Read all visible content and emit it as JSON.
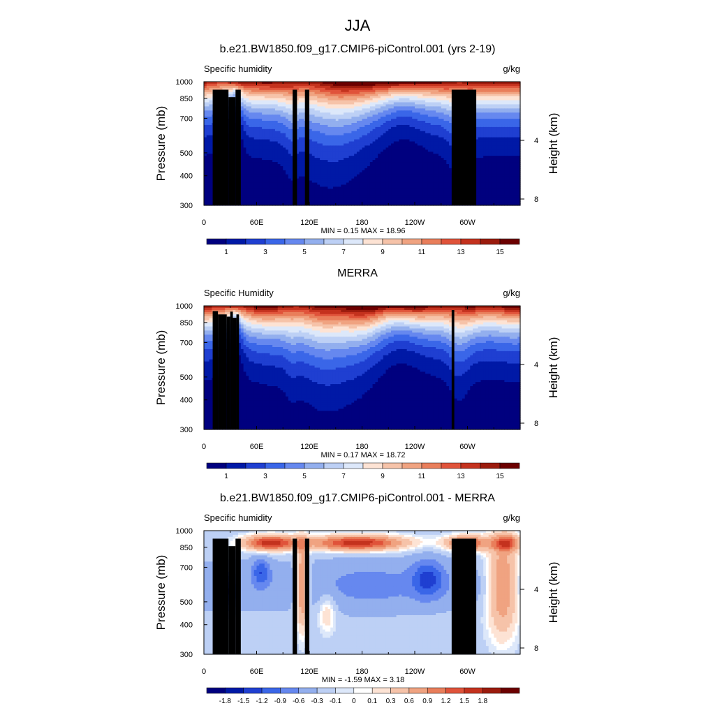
{
  "figure": {
    "title": "JJA"
  },
  "colors": {
    "abs_palette": [
      "#00007f",
      "#0019a6",
      "#1f3fd1",
      "#3a66e8",
      "#6688ef",
      "#93afee",
      "#bdd0f5",
      "#dde8fa",
      "#fde3d4",
      "#f6c3a9",
      "#f0a381",
      "#e97e5b",
      "#e0533a",
      "#c4321e",
      "#9b1b0d",
      "#6c0000"
    ],
    "diff_palette": [
      "#00007f",
      "#0019a6",
      "#1f3fd1",
      "#3a66e8",
      "#6688ef",
      "#93afee",
      "#bdd0f5",
      "#dde8fa",
      "#ffffff",
      "#fde3d4",
      "#f6c3a9",
      "#f0a381",
      "#e97e5b",
      "#e0533a",
      "#c4321e",
      "#9b1b0d",
      "#6c0000"
    ],
    "topography": "#000000"
  },
  "chart_data": [
    {
      "type": "heatmap",
      "title": "b.e21.BW1850.f09_g17.CMIP6-piControl.001 (yrs 2-19)",
      "left_label": "Specific humidity",
      "units": "g/kg",
      "ylabel": "Pressure (mb)",
      "ylabel_right": "Height (km)",
      "x_ticks": [
        "0",
        "60E",
        "120E",
        "180",
        "120W",
        "60W"
      ],
      "y_ticks": [
        "300",
        "400",
        "500",
        "700",
        "850",
        "1000"
      ],
      "y_ticks_right": [
        "8",
        "4"
      ],
      "min_max_text": "MIN =   0.15  MAX =  18.96",
      "colorbar_labels": [
        "1",
        "3",
        "5",
        "7",
        "9",
        "11",
        "13",
        "15"
      ],
      "min": 0.15,
      "max": 18.96,
      "xlim": [
        0,
        360
      ],
      "ylim": [
        1000,
        300
      ],
      "levels": [
        1,
        2,
        3,
        4,
        5,
        6,
        7,
        8,
        9,
        10,
        11,
        12,
        13,
        14,
        15
      ]
    },
    {
      "type": "heatmap",
      "title": "MERRA",
      "left_label": "Specific Humidity",
      "units": "g/kg",
      "ylabel": "Pressure (mb)",
      "ylabel_right": "Height (km)",
      "x_ticks": [
        "0",
        "60E",
        "120E",
        "180",
        "120W",
        "60W"
      ],
      "y_ticks": [
        "300",
        "400",
        "500",
        "700",
        "850",
        "1000"
      ],
      "y_ticks_right": [
        "8",
        "4"
      ],
      "min_max_text": "MIN =   0.17  MAX =  18.72",
      "colorbar_labels": [
        "1",
        "3",
        "5",
        "7",
        "9",
        "11",
        "13",
        "15"
      ],
      "min": 0.17,
      "max": 18.72,
      "xlim": [
        0,
        360
      ],
      "ylim": [
        1000,
        300
      ],
      "levels": [
        1,
        2,
        3,
        4,
        5,
        6,
        7,
        8,
        9,
        10,
        11,
        12,
        13,
        14,
        15
      ]
    },
    {
      "type": "heatmap",
      "title": "b.e21.BW1850.f09_g17.CMIP6-piControl.001 - MERRA",
      "left_label": "Specific humidity",
      "units": "g/kg",
      "ylabel": "Pressure (mb)",
      "ylabel_right": "Height (km)",
      "x_ticks": [
        "0",
        "60E",
        "120E",
        "180",
        "120W",
        "60W"
      ],
      "y_ticks": [
        "300",
        "400",
        "500",
        "700",
        "850",
        "1000"
      ],
      "y_ticks_right": [
        "8",
        "4"
      ],
      "min_max_text": "MIN =  -1.59  MAX =   3.18",
      "colorbar_labels": [
        "-1.8",
        "-1.5",
        "-1.2",
        "-0.9",
        "-0.6",
        "-0.3",
        "-0.1",
        "0",
        "0.1",
        "0.3",
        "0.6",
        "0.9",
        "1.2",
        "1.5",
        "1.8"
      ],
      "min": -1.59,
      "max": 3.18,
      "xlim": [
        0,
        360
      ],
      "ylim": [
        1000,
        300
      ],
      "levels": [
        -1.8,
        -1.5,
        -1.2,
        -0.9,
        -0.6,
        -0.3,
        -0.1,
        0,
        0.1,
        0.3,
        0.6,
        0.9,
        1.2,
        1.5,
        1.8
      ]
    }
  ]
}
